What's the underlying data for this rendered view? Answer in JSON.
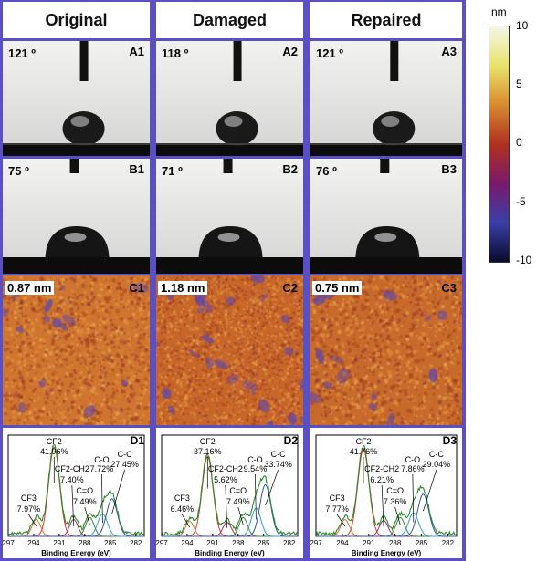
{
  "columns": [
    {
      "header": "Original",
      "A": {
        "angle": "121 º",
        "label": "A1"
      },
      "B": {
        "angle": "75 º",
        "label": "B1"
      },
      "C": {
        "thickness": "0.87 nm",
        "label": "C1"
      },
      "D": {
        "label": "D1",
        "xlabel": "Binding Energy (eV)",
        "ticks": [
          "297",
          "294",
          "291",
          "288",
          "285",
          "282"
        ],
        "annotations": [
          {
            "species": "CF2",
            "value": "41.96%"
          },
          {
            "species": "CF2-CH2",
            "value": "7.40%"
          },
          {
            "species": "C-O",
            "value": "7.72%"
          },
          {
            "species": "C-C",
            "value": "27.45%"
          },
          {
            "species": "C=O",
            "value": "7.49%"
          },
          {
            "species": "CF3",
            "value": "7.97%"
          }
        ]
      }
    },
    {
      "header": "Damaged",
      "A": {
        "angle": "118 º",
        "label": "A2"
      },
      "B": {
        "angle": "71 º",
        "label": "B2"
      },
      "C": {
        "thickness": "1.18 nm",
        "label": "C2"
      },
      "D": {
        "label": "D2",
        "xlabel": "Binding Energy (eV)",
        "ticks": [
          "297",
          "294",
          "291",
          "288",
          "285",
          "282"
        ],
        "annotations": [
          {
            "species": "CF2",
            "value": "37.16%"
          },
          {
            "species": "CF2-CH2",
            "value": "5.62%"
          },
          {
            "species": "C-O",
            "value": "9.54%"
          },
          {
            "species": "C-C",
            "value": "33.74%"
          },
          {
            "species": "C=O",
            "value": "7.49%"
          },
          {
            "species": "CF3",
            "value": "6.46%"
          }
        ]
      }
    },
    {
      "header": "Repaired",
      "A": {
        "angle": "121 º",
        "label": "A3"
      },
      "B": {
        "angle": "76 º",
        "label": "B3"
      },
      "C": {
        "thickness": "0.75 nm",
        "label": "C3"
      },
      "D": {
        "label": "D3",
        "xlabel": "Binding Energy (eV)",
        "ticks": [
          "297",
          "294",
          "291",
          "288",
          "285",
          "282"
        ],
        "annotations": [
          {
            "species": "CF2",
            "value": "41.76%"
          },
          {
            "species": "CF2-CH2",
            "value": "6.21%"
          },
          {
            "species": "C-O",
            "value": "7.86%"
          },
          {
            "species": "C-C",
            "value": "29.04%"
          },
          {
            "species": "C=O",
            "value": "7.36%"
          },
          {
            "species": "CF3",
            "value": "7.77%"
          }
        ]
      }
    }
  ],
  "colorbar": {
    "unit": "nm",
    "ticks": [
      "10",
      "5",
      "0",
      "-5",
      "-10"
    ],
    "colors": [
      "#f4f6e9",
      "#e8e36a",
      "#d88a2e",
      "#b03020",
      "#7a1a6a",
      "#3a3fa8",
      "#0a0a2a"
    ]
  }
}
